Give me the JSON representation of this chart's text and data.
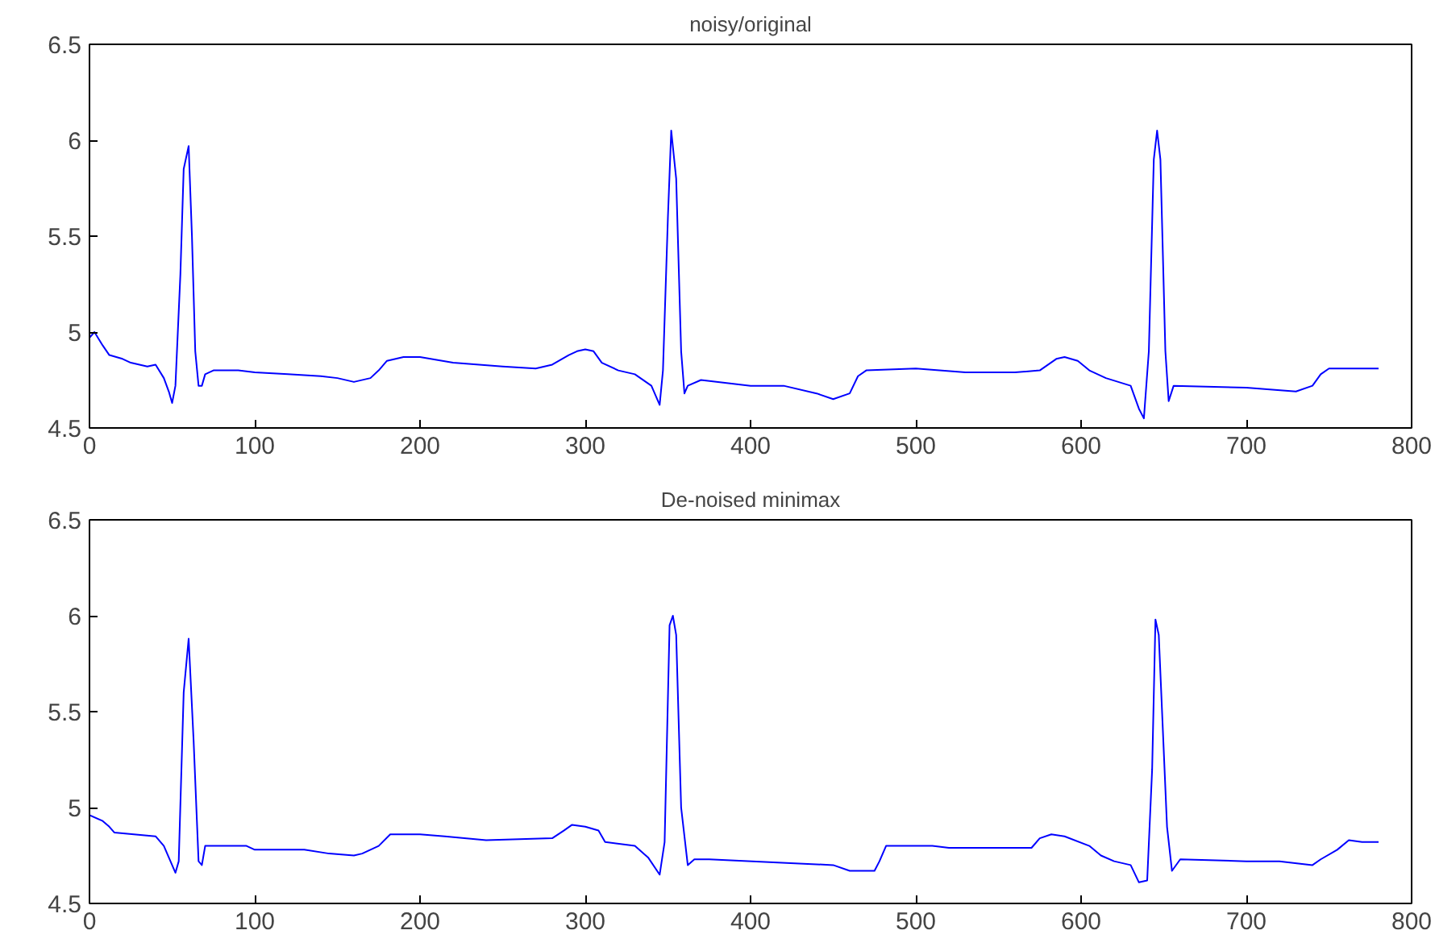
{
  "chart_data": [
    {
      "type": "line",
      "title": "noisy/original",
      "xlim": [
        0,
        800
      ],
      "ylim": [
        4.5,
        6.5
      ],
      "xticks": [
        0,
        100,
        200,
        300,
        400,
        500,
        600,
        700,
        800
      ],
      "yticks": [
        4.5,
        5,
        5.5,
        6,
        6.5
      ],
      "series": [
        {
          "color": "#0000ff",
          "x": [
            0,
            3,
            8,
            12,
            20,
            25,
            35,
            40,
            45,
            48,
            50,
            52,
            55,
            57,
            60,
            62,
            64,
            66,
            68,
            70,
            75,
            90,
            100,
            120,
            140,
            150,
            160,
            170,
            175,
            180,
            190,
            200,
            220,
            250,
            270,
            280,
            290,
            295,
            300,
            305,
            310,
            320,
            330,
            340,
            345,
            347,
            350,
            352,
            355,
            358,
            360,
            362,
            370,
            400,
            420,
            440,
            450,
            460,
            465,
            470,
            500,
            530,
            560,
            575,
            585,
            590,
            598,
            605,
            615,
            630,
            635,
            638,
            641,
            644,
            646,
            648,
            651,
            653,
            656,
            700,
            730,
            740,
            745,
            750,
            770,
            780
          ],
          "values": [
            4.97,
            5.0,
            4.93,
            4.88,
            4.86,
            4.84,
            4.82,
            4.83,
            4.76,
            4.69,
            4.63,
            4.72,
            5.3,
            5.85,
            5.97,
            5.5,
            4.9,
            4.72,
            4.72,
            4.78,
            4.8,
            4.8,
            4.79,
            4.78,
            4.77,
            4.76,
            4.74,
            4.76,
            4.8,
            4.85,
            4.87,
            4.87,
            4.84,
            4.82,
            4.81,
            4.83,
            4.88,
            4.9,
            4.91,
            4.9,
            4.84,
            4.8,
            4.78,
            4.72,
            4.62,
            4.8,
            5.6,
            6.05,
            5.8,
            4.9,
            4.68,
            4.72,
            4.75,
            4.72,
            4.72,
            4.68,
            4.65,
            4.68,
            4.77,
            4.8,
            4.81,
            4.79,
            4.79,
            4.8,
            4.86,
            4.87,
            4.85,
            4.8,
            4.76,
            4.72,
            4.6,
            4.55,
            4.9,
            5.9,
            6.05,
            5.9,
            4.9,
            4.64,
            4.72,
            4.71,
            4.69,
            4.72,
            4.78,
            4.81,
            4.81,
            4.81
          ]
        }
      ]
    },
    {
      "type": "line",
      "title": "De-noised minimax",
      "xlim": [
        0,
        800
      ],
      "ylim": [
        4.5,
        6.5
      ],
      "xticks": [
        0,
        100,
        200,
        300,
        400,
        500,
        600,
        700,
        800
      ],
      "yticks": [
        4.5,
        5,
        5.5,
        6,
        6.5
      ],
      "series": [
        {
          "color": "#0000ff",
          "x": [
            0,
            8,
            12,
            15,
            40,
            45,
            48,
            52,
            54,
            57,
            60,
            63,
            66,
            68,
            70,
            95,
            100,
            130,
            145,
            160,
            165,
            175,
            182,
            200,
            215,
            240,
            280,
            287,
            292,
            300,
            308,
            312,
            330,
            338,
            345,
            348,
            351,
            353,
            355,
            358,
            362,
            366,
            375,
            450,
            460,
            475,
            478,
            482,
            510,
            520,
            570,
            575,
            582,
            590,
            605,
            612,
            620,
            630,
            635,
            640,
            643,
            645,
            647,
            652,
            655,
            660,
            700,
            720,
            740,
            745,
            755,
            762,
            770,
            780
          ],
          "values": [
            4.96,
            4.93,
            4.9,
            4.87,
            4.85,
            4.8,
            4.74,
            4.66,
            4.72,
            5.6,
            5.88,
            5.35,
            4.72,
            4.7,
            4.8,
            4.8,
            4.78,
            4.78,
            4.76,
            4.75,
            4.76,
            4.8,
            4.86,
            4.86,
            4.85,
            4.83,
            4.84,
            4.88,
            4.91,
            4.9,
            4.88,
            4.82,
            4.8,
            4.74,
            4.65,
            4.82,
            5.95,
            6.0,
            5.9,
            5.0,
            4.7,
            4.73,
            4.73,
            4.7,
            4.67,
            4.67,
            4.72,
            4.8,
            4.8,
            4.79,
            4.79,
            4.84,
            4.86,
            4.85,
            4.8,
            4.75,
            4.72,
            4.7,
            4.61,
            4.62,
            5.2,
            5.98,
            5.9,
            4.9,
            4.67,
            4.73,
            4.72,
            4.72,
            4.7,
            4.73,
            4.78,
            4.83,
            4.82,
            4.82
          ]
        }
      ]
    }
  ]
}
